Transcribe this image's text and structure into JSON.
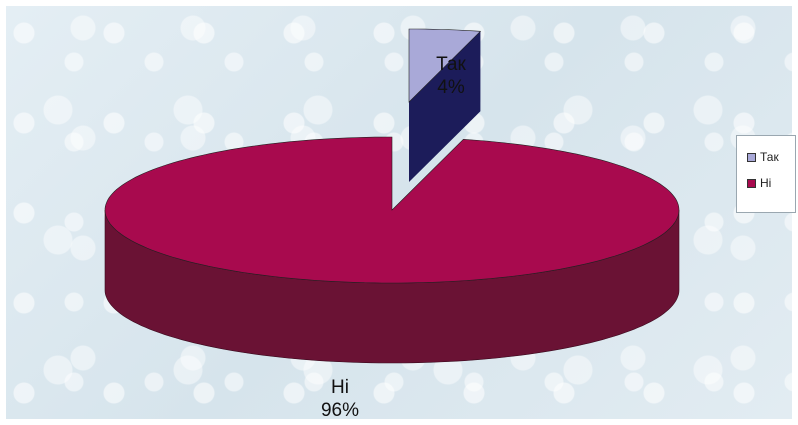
{
  "chart_data": {
    "type": "pie",
    "three_d": true,
    "categories": [
      "Так",
      "Ні"
    ],
    "values": [
      4,
      96
    ],
    "value_labels": [
      "4%",
      "96%"
    ],
    "colors": {
      "Так": {
        "top": "#a9a9d8",
        "side": "#1c1c5a"
      },
      "Ні": {
        "top": "#a80a4e",
        "side": "#6a1234"
      }
    },
    "legend": {
      "position": "right",
      "items": [
        {
          "label": "Так",
          "color": "#a9a9d8"
        },
        {
          "label": "Ні",
          "color": "#a80a4e"
        }
      ]
    }
  }
}
